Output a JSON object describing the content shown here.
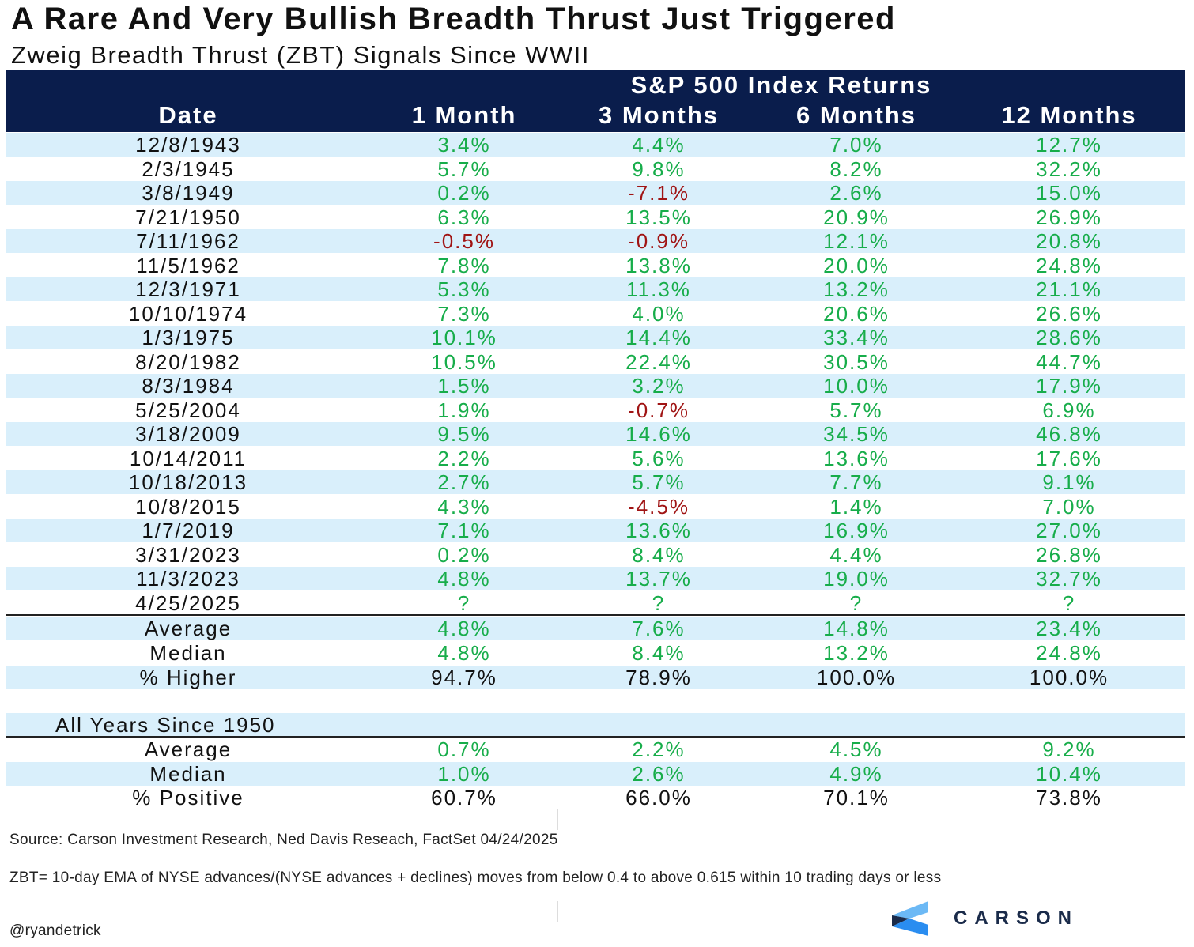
{
  "title": "A Rare And Very Bullish Breadth Thrust Just Triggered",
  "subtitle": "Zweig Breadth Thrust (ZBT) Signals Since WWII",
  "colors": {
    "header_bg": "#0a1d4c",
    "stripe": "#d9effb",
    "positive": "#17ad4a",
    "negative": "#a01414"
  },
  "chart_data": {
    "type": "table",
    "group_header": "S&P 500 Index Returns",
    "columns": [
      "Date",
      "1 Month",
      "3 Months",
      "6 Months",
      "12 Months"
    ],
    "rows": [
      [
        "12/8/1943",
        "3.4%",
        "4.4%",
        "7.0%",
        "12.7%"
      ],
      [
        "2/3/1945",
        "5.7%",
        "9.8%",
        "8.2%",
        "32.2%"
      ],
      [
        "3/8/1949",
        "0.2%",
        "-7.1%",
        "2.6%",
        "15.0%"
      ],
      [
        "7/21/1950",
        "6.3%",
        "13.5%",
        "20.9%",
        "26.9%"
      ],
      [
        "7/11/1962",
        "-0.5%",
        "-0.9%",
        "12.1%",
        "20.8%"
      ],
      [
        "11/5/1962",
        "7.8%",
        "13.8%",
        "20.0%",
        "24.8%"
      ],
      [
        "12/3/1971",
        "5.3%",
        "11.3%",
        "13.2%",
        "21.1%"
      ],
      [
        "10/10/1974",
        "7.3%",
        "4.0%",
        "20.6%",
        "26.6%"
      ],
      [
        "1/3/1975",
        "10.1%",
        "14.4%",
        "33.4%",
        "28.6%"
      ],
      [
        "8/20/1982",
        "10.5%",
        "22.4%",
        "30.5%",
        "44.7%"
      ],
      [
        "8/3/1984",
        "1.5%",
        "3.2%",
        "10.0%",
        "17.9%"
      ],
      [
        "5/25/2004",
        "1.9%",
        "-0.7%",
        "5.7%",
        "6.9%"
      ],
      [
        "3/18/2009",
        "9.5%",
        "14.6%",
        "34.5%",
        "46.8%"
      ],
      [
        "10/14/2011",
        "2.2%",
        "5.6%",
        "13.6%",
        "17.6%"
      ],
      [
        "10/18/2013",
        "2.7%",
        "5.7%",
        "7.7%",
        "9.1%"
      ],
      [
        "10/8/2015",
        "4.3%",
        "-4.5%",
        "1.4%",
        "7.0%"
      ],
      [
        "1/7/2019",
        "7.1%",
        "13.6%",
        "16.9%",
        "27.0%"
      ],
      [
        "3/31/2023",
        "0.2%",
        "8.4%",
        "4.4%",
        "26.8%"
      ],
      [
        "11/3/2023",
        "4.8%",
        "13.7%",
        "19.0%",
        "32.7%"
      ],
      [
        "4/25/2025",
        "?",
        "?",
        "?",
        "?"
      ]
    ],
    "summary": [
      [
        "Average",
        "4.8%",
        "7.6%",
        "14.8%",
        "23.4%"
      ],
      [
        "Median",
        "4.8%",
        "8.4%",
        "13.2%",
        "24.8%"
      ],
      [
        "% Higher",
        "94.7%",
        "78.9%",
        "100.0%",
        "100.0%"
      ]
    ],
    "all_years_label": "All Years Since 1950",
    "all_years": [
      [
        "Average",
        "0.7%",
        "2.2%",
        "4.5%",
        "9.2%"
      ],
      [
        "Median",
        "1.0%",
        "2.6%",
        "4.9%",
        "10.4%"
      ],
      [
        "% Positive",
        "60.7%",
        "66.0%",
        "70.1%",
        "73.8%"
      ]
    ]
  },
  "footer": {
    "source": "Source: Carson Investment Research, Ned Davis Reseach, FactSet 04/24/2025",
    "definition": "ZBT= 10-day EMA of NYSE advances/(NYSE advances + declines) moves from below 0.4 to above 0.615 within 10 trading days or less",
    "handle": "@ryandetrick",
    "logo": "CARSON"
  }
}
